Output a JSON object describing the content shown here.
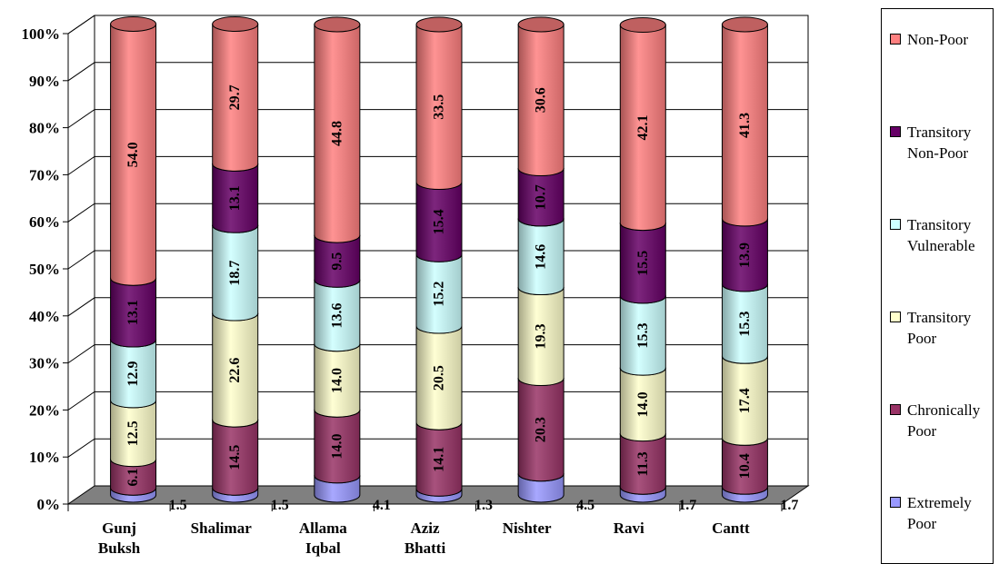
{
  "chart_data": {
    "type": "bar",
    "stacked": true,
    "percent": true,
    "title": "",
    "xlabel": "",
    "ylabel": "",
    "ylim": [
      0,
      100
    ],
    "yticks": [
      "0%",
      "10%",
      "20%",
      "30%",
      "40%",
      "50%",
      "60%",
      "70%",
      "80%",
      "90%",
      "100%"
    ],
    "categories": [
      [
        "Gunj",
        "Buksh"
      ],
      [
        "Shalimar"
      ],
      [
        "Allama",
        "Iqbal"
      ],
      [
        "Aziz",
        "Bhatti"
      ],
      [
        "Nishter"
      ],
      [
        "Ravi"
      ],
      [
        "Cantt"
      ]
    ],
    "series": [
      {
        "name": "Extremely Poor",
        "color": "#9999ff",
        "values": [
          1.5,
          1.5,
          4.1,
          1.3,
          4.5,
          1.7,
          1.7
        ],
        "labels": [
          "1.5",
          "1.5",
          "4.1",
          "1.3",
          "4.5",
          "1.7",
          "1.7"
        ]
      },
      {
        "name": "Chronically Poor",
        "color": "#993366",
        "values": [
          6.1,
          14.5,
          14.0,
          14.1,
          20.3,
          11.3,
          10.4
        ],
        "labels": [
          "6.1",
          "14.5",
          "14.0",
          "14.1",
          "20.3",
          "11.3",
          "10.4"
        ]
      },
      {
        "name": "Transitory Poor",
        "color": "#ffffcc",
        "values": [
          12.5,
          22.6,
          14.0,
          20.5,
          19.3,
          14.0,
          17.4
        ],
        "labels": [
          "12.5",
          "22.6",
          "14.0",
          "20.5",
          "19.3",
          "14.0",
          "17.4"
        ]
      },
      {
        "name": "Transitory Vulnerable",
        "color": "#ccffff",
        "values": [
          12.9,
          18.7,
          13.6,
          15.2,
          14.6,
          15.3,
          15.3
        ],
        "labels": [
          "12.9",
          "18.7",
          "13.6",
          "15.2",
          "14.6",
          "15.3",
          "15.3"
        ]
      },
      {
        "name": "Transitory Non-Poor",
        "color": "#660066",
        "values": [
          13.1,
          13.1,
          9.5,
          15.4,
          10.7,
          15.5,
          13.9
        ],
        "labels": [
          "13.1",
          "13.1",
          "9.5",
          "15.4",
          "10.7",
          "15.5",
          "13.9"
        ]
      },
      {
        "name": "Non-Poor",
        "color": "#ff8080",
        "values": [
          54.0,
          29.7,
          44.8,
          33.5,
          30.6,
          42.1,
          41.3
        ],
        "labels": [
          "54.0",
          "29.7",
          "44.8",
          "33.5",
          "30.6",
          "42.1",
          "41.3"
        ]
      }
    ],
    "legend": {
      "position": "right",
      "items": [
        {
          "series": 5,
          "lines": [
            "Non-Poor"
          ]
        },
        {
          "series": 4,
          "lines": [
            "Transitory",
            "Non-Poor"
          ]
        },
        {
          "series": 3,
          "lines": [
            "Transitory",
            "Vulnerable"
          ]
        },
        {
          "series": 2,
          "lines": [
            "Transitory",
            "Poor"
          ]
        },
        {
          "series": 1,
          "lines": [
            "Chronically",
            "Poor"
          ]
        },
        {
          "series": 0,
          "lines": [
            "Extremely",
            "Poor"
          ]
        }
      ]
    },
    "grid": true,
    "style": "3d-cylinder"
  }
}
